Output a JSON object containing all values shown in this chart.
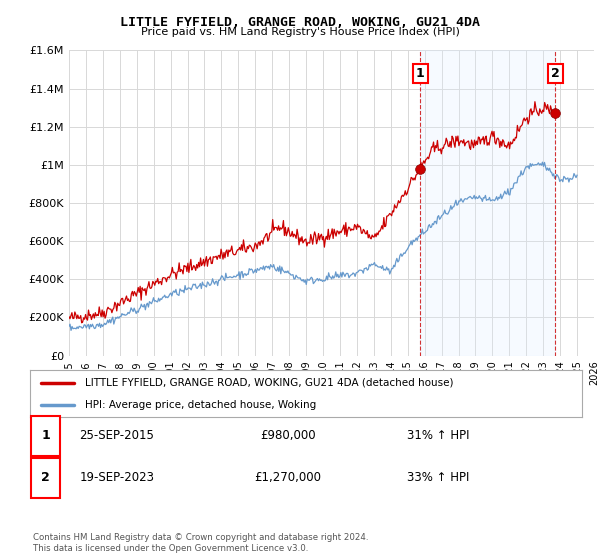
{
  "title": "LITTLE FYFIELD, GRANGE ROAD, WOKING, GU21 4DA",
  "subtitle": "Price paid vs. HM Land Registry's House Price Index (HPI)",
  "legend_label_red": "LITTLE FYFIELD, GRANGE ROAD, WOKING, GU21 4DA (detached house)",
  "legend_label_blue": "HPI: Average price, detached house, Woking",
  "footnote": "Contains HM Land Registry data © Crown copyright and database right 2024.\nThis data is licensed under the Open Government Licence v3.0.",
  "transaction1_date": "25-SEP-2015",
  "transaction1_price": "£980,000",
  "transaction1_hpi": "31% ↑ HPI",
  "transaction2_date": "19-SEP-2023",
  "transaction2_price": "£1,270,000",
  "transaction2_hpi": "33% ↑ HPI",
  "ylim": [
    0,
    1600000
  ],
  "yticks": [
    0,
    200000,
    400000,
    600000,
    800000,
    1000000,
    1200000,
    1400000,
    1600000
  ],
  "ytick_labels": [
    "£0",
    "£200K",
    "£400K",
    "£600K",
    "£800K",
    "£1M",
    "£1.2M",
    "£1.4M",
    "£1.6M"
  ],
  "background_color": "#ffffff",
  "grid_color": "#d8d8d8",
  "red_color": "#cc0000",
  "blue_color": "#6699cc",
  "shade_color": "#ddeeff",
  "marker1_x": 2015.73,
  "marker1_y": 980000,
  "marker2_x": 2023.72,
  "marker2_y": 1270000,
  "dashed_line1_x": 2015.73,
  "dashed_line2_x": 2023.72,
  "xmin": 1995,
  "xmax": 2026,
  "xticks": [
    1995,
    1996,
    1997,
    1998,
    1999,
    2000,
    2001,
    2002,
    2003,
    2004,
    2005,
    2006,
    2007,
    2008,
    2009,
    2010,
    2011,
    2012,
    2013,
    2014,
    2015,
    2016,
    2017,
    2018,
    2019,
    2020,
    2021,
    2022,
    2023,
    2024,
    2025,
    2026
  ]
}
